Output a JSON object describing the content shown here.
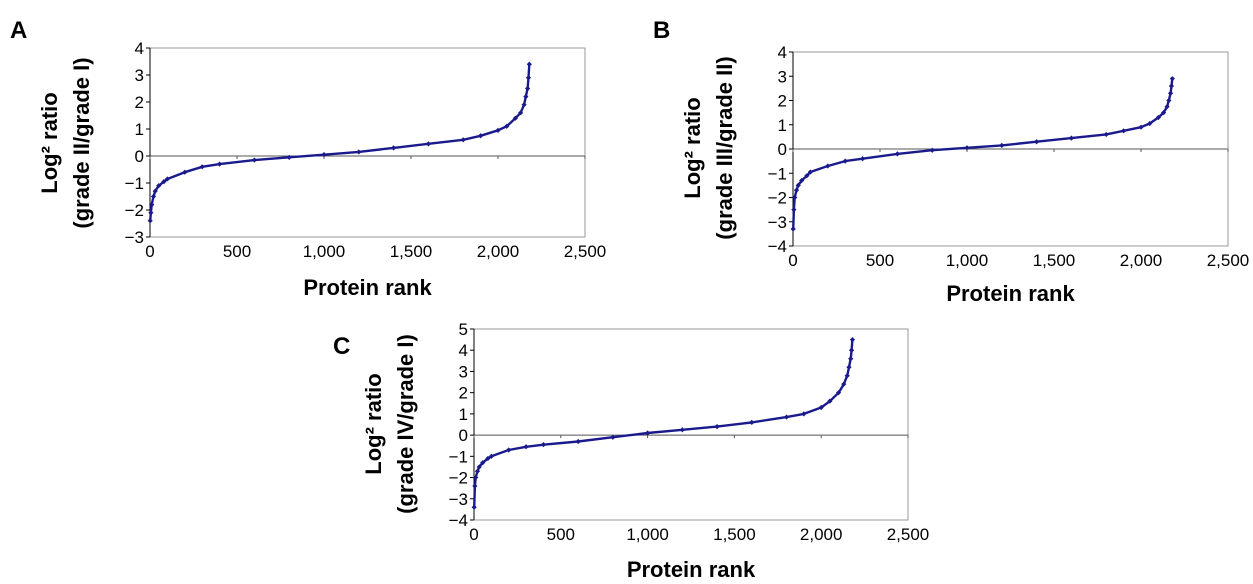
{
  "colors": {
    "series": "#1a1a8c"
  },
  "chart_data": [
    {
      "panel": "A",
      "type": "scatter",
      "xlabel": "Protein rank",
      "ylabel_lines": [
        "Log² ratio",
        "(grade II/grade I)"
      ],
      "xlim": [
        0,
        2500
      ],
      "ylim": [
        -3,
        4
      ],
      "xticks": [
        0,
        500,
        1000,
        1500,
        2000,
        2500
      ],
      "xtick_labels": [
        "0",
        "500",
        "1,000",
        "1,500",
        "2,000",
        "2,500"
      ],
      "yticks": [
        -3,
        -2,
        -1,
        0,
        1,
        2,
        3,
        4
      ],
      "ytick_labels": [
        "−3",
        "−2",
        "−1",
        "0",
        "1",
        "2",
        "3",
        "4"
      ],
      "grid": false,
      "series": [
        {
          "x": [
            1,
            5,
            10,
            20,
            30,
            50,
            80,
            100,
            200,
            300,
            400,
            600,
            800,
            1000,
            1200,
            1400,
            1600,
            1800,
            1900,
            2000,
            2050,
            2100,
            2130,
            2150,
            2160,
            2170,
            2175,
            2180
          ],
          "y": [
            -2.4,
            -2.1,
            -1.8,
            -1.5,
            -1.3,
            -1.1,
            -0.95,
            -0.85,
            -0.6,
            -0.4,
            -0.3,
            -0.15,
            -0.05,
            0.05,
            0.15,
            0.3,
            0.45,
            0.6,
            0.75,
            0.95,
            1.1,
            1.4,
            1.6,
            1.9,
            2.2,
            2.5,
            2.9,
            3.4
          ]
        }
      ]
    },
    {
      "panel": "B",
      "type": "scatter",
      "xlabel": "Protein rank",
      "ylabel_lines": [
        "Log² ratio",
        "(grade III/grade II)"
      ],
      "xlim": [
        0,
        2500
      ],
      "ylim": [
        -4,
        4
      ],
      "xticks": [
        0,
        500,
        1000,
        1500,
        2000,
        2500
      ],
      "xtick_labels": [
        "0",
        "500",
        "1,000",
        "1,500",
        "2,000",
        "2,500"
      ],
      "yticks": [
        -4,
        -3,
        -2,
        -1,
        0,
        1,
        2,
        3,
        4
      ],
      "ytick_labels": [
        "−4",
        "−3",
        "−2",
        "−1",
        "0",
        "1",
        "2",
        "3",
        "4"
      ],
      "grid": false,
      "series": [
        {
          "x": [
            1,
            5,
            10,
            20,
            30,
            50,
            80,
            100,
            200,
            300,
            400,
            600,
            800,
            1000,
            1200,
            1400,
            1600,
            1800,
            1900,
            2000,
            2050,
            2100,
            2130,
            2150,
            2160,
            2170,
            2175,
            2180
          ],
          "y": [
            -3.3,
            -2.5,
            -2.0,
            -1.7,
            -1.5,
            -1.3,
            -1.1,
            -0.95,
            -0.7,
            -0.5,
            -0.4,
            -0.2,
            -0.05,
            0.05,
            0.15,
            0.3,
            0.45,
            0.6,
            0.75,
            0.9,
            1.05,
            1.3,
            1.5,
            1.75,
            2.0,
            2.3,
            2.6,
            2.9
          ]
        }
      ]
    },
    {
      "panel": "C",
      "type": "scatter",
      "xlabel": "Protein rank",
      "ylabel_lines": [
        "Log² ratio",
        "(grade IV/grade I)"
      ],
      "xlim": [
        0,
        2500
      ],
      "ylim": [
        -4,
        5
      ],
      "xticks": [
        0,
        500,
        1000,
        1500,
        2000,
        2500
      ],
      "xtick_labels": [
        "0",
        "500",
        "1,000",
        "1,500",
        "2,000",
        "2,500"
      ],
      "yticks": [
        -4,
        -3,
        -2,
        -1,
        0,
        1,
        2,
        3,
        4,
        5
      ],
      "ytick_labels": [
        "−4",
        "−3",
        "−2",
        "−1",
        "0",
        "1",
        "2",
        "3",
        "4",
        "5"
      ],
      "grid": false,
      "series": [
        {
          "x": [
            1,
            5,
            10,
            20,
            30,
            50,
            80,
            100,
            200,
            300,
            400,
            600,
            800,
            1000,
            1200,
            1400,
            1600,
            1800,
            1900,
            2000,
            2050,
            2100,
            2130,
            2150,
            2160,
            2170,
            2175,
            2180
          ],
          "y": [
            -3.4,
            -2.4,
            -2.0,
            -1.7,
            -1.5,
            -1.3,
            -1.1,
            -1.0,
            -0.7,
            -0.55,
            -0.45,
            -0.3,
            -0.1,
            0.1,
            0.25,
            0.4,
            0.6,
            0.85,
            1.0,
            1.3,
            1.6,
            2.0,
            2.4,
            2.8,
            3.2,
            3.6,
            4.0,
            4.5
          ]
        }
      ]
    }
  ]
}
